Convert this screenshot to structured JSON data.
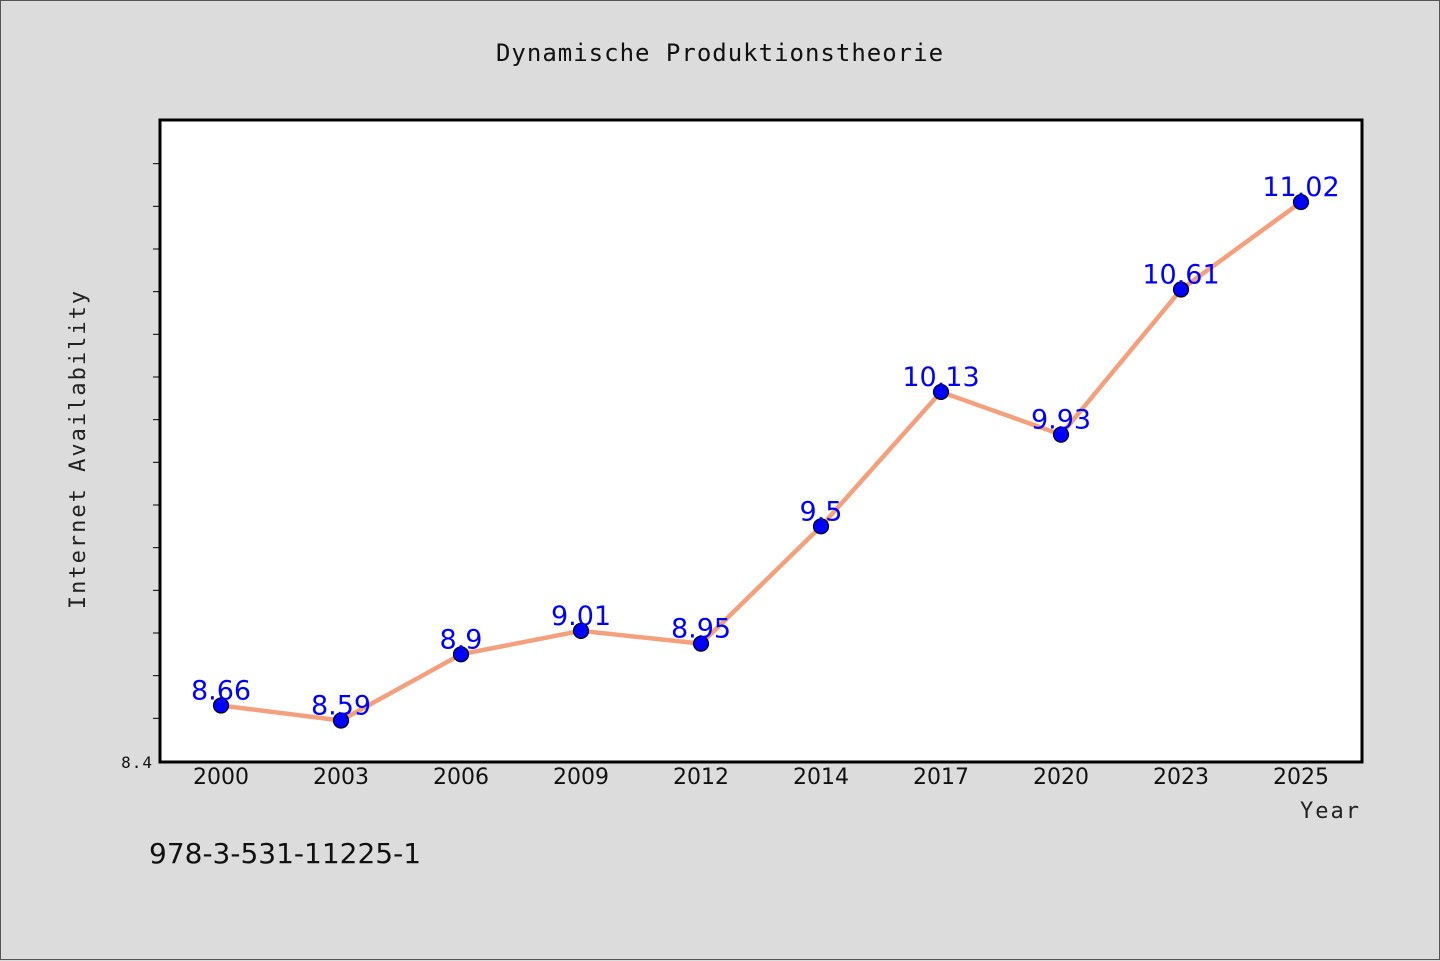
{
  "chart_data": {
    "type": "line",
    "title": "Dynamische Produktionstheorie",
    "xlabel": "Year",
    "ylabel": "Internet Availability",
    "categories": [
      "2000",
      "2003",
      "2006",
      "2009",
      "2012",
      "2014",
      "2017",
      "2020",
      "2023",
      "2025"
    ],
    "series": [
      {
        "values": [
          8.66,
          8.59,
          8.9,
          9.01,
          8.95,
          9.5,
          10.13,
          9.93,
          10.61,
          11.02
        ],
        "data_labels": [
          "8.66",
          "8.59",
          "8.9",
          "9.01",
          "8.95",
          "9.5",
          "10.13",
          "9.93",
          "10.61",
          "11.02"
        ],
        "line_color": "#f4a07c",
        "marker_color": "#0000ff"
      }
    ],
    "ylim": [
      8.4,
      11.4
    ],
    "y_tick_label": "8.4",
    "grid": false,
    "legend": "none"
  },
  "footer": {
    "isbn": "978-3-531-11225-1"
  },
  "colors": {
    "background": "#dcdcdc",
    "plot_background": "#ffffff",
    "data_label": "#0000ff"
  }
}
